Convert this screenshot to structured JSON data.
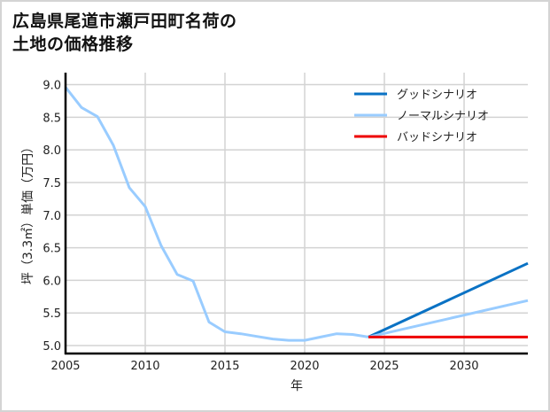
{
  "title_line1": "広島県尾道市瀬戸田町名荷の",
  "title_line2": "土地の価格推移",
  "chart_data": {
    "type": "line",
    "title": "広島県尾道市瀬戸田町名荷の土地の価格推移",
    "xlabel": "年",
    "ylabel": "坪（3.3㎡）単価（万円）",
    "xlim": [
      2005,
      2034
    ],
    "ylim": [
      4.9,
      9.15
    ],
    "xticks": [
      2005,
      2010,
      2015,
      2020,
      2025,
      2030
    ],
    "yticks": [
      5.0,
      5.5,
      6.0,
      6.5,
      7.0,
      7.5,
      8.0,
      8.5,
      9.0
    ],
    "grid": true,
    "legend_position": "upper right",
    "series": [
      {
        "name": "ノーマルシナリオ (実績)",
        "color": "#99ccff",
        "x": [
          2005,
          2006,
          2007,
          2008,
          2009,
          2010,
          2011,
          2012,
          2013,
          2014,
          2015,
          2016,
          2017,
          2018,
          2019,
          2020,
          2021,
          2022,
          2023,
          2024
        ],
        "values": [
          8.96,
          8.65,
          8.51,
          8.07,
          7.42,
          7.13,
          6.53,
          6.09,
          5.99,
          5.36,
          5.21,
          5.18,
          5.14,
          5.1,
          5.08,
          5.08,
          5.13,
          5.18,
          5.17,
          5.13
        ]
      },
      {
        "name": "グッドシナリオ",
        "color": "#0a72c4",
        "x": [
          2024,
          2034
        ],
        "values": [
          5.13,
          6.26
        ]
      },
      {
        "name": "ノーマルシナリオ",
        "color": "#99ccff",
        "x": [
          2024,
          2034
        ],
        "values": [
          5.13,
          5.69
        ]
      },
      {
        "name": "バッドシナリオ",
        "color": "#ee0000",
        "x": [
          2024,
          2034
        ],
        "values": [
          5.13,
          5.13
        ]
      }
    ],
    "legend": [
      {
        "label": "グッドシナリオ",
        "color": "#0a72c4"
      },
      {
        "label": "ノーマルシナリオ",
        "color": "#99ccff"
      },
      {
        "label": "バッドシナリオ",
        "color": "#ee0000"
      }
    ]
  }
}
